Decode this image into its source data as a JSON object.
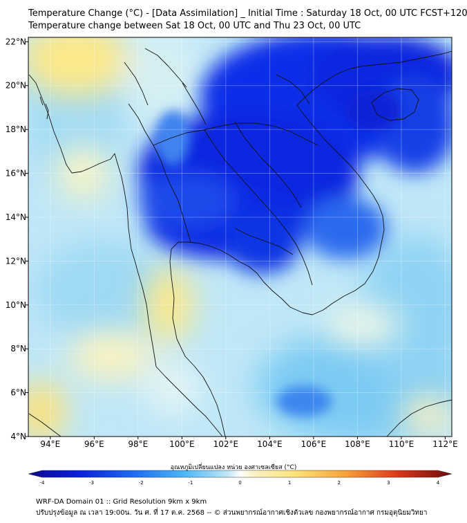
{
  "header": {
    "title_line1": "Temperature Change (°C) - [Data Assimilation] _ Initial Time : Saturday 18 Oct, 00 UTC FCST+120",
    "title_line2": "Temperature change between Sat 18 Oct, 00 UTC and Thu 23 Oct, 00 UTC"
  },
  "map": {
    "lon_ticks": [
      "94°E",
      "96°E",
      "98°E",
      "100°E",
      "102°E",
      "104°E",
      "106°E",
      "108°E",
      "110°E",
      "112°E"
    ],
    "lat_ticks": [
      "22°N",
      "20°N",
      "18°N",
      "16°N",
      "14°N",
      "12°N",
      "10°N",
      "8°N",
      "6°N",
      "4°N"
    ],
    "lon_values": [
      94,
      96,
      98,
      100,
      102,
      104,
      106,
      108,
      110,
      112
    ],
    "lat_values": [
      22,
      20,
      18,
      16,
      14,
      12,
      10,
      8,
      6,
      4
    ],
    "lon_range": [
      93,
      112.3
    ],
    "lat_range": [
      4,
      22.2
    ],
    "grid": true
  },
  "colorbar": {
    "label": "อุณหภูมิเปลี่ยนแปลง หน่วย องศาเซลเซียส (°C)",
    "ticks": [
      "-4",
      "-3",
      "-2",
      "-1",
      "0",
      "1",
      "2",
      "3",
      "4"
    ],
    "tick_values": [
      -4,
      -3,
      -2,
      -1,
      0,
      1,
      2,
      3,
      4
    ],
    "range": [
      -4,
      4
    ]
  },
  "colors": {
    "strong_cool": "#0a2fe0",
    "cool": "#4fb3f5",
    "light_cool": "#a9dcf6",
    "neutral": "#dff2fb",
    "warm": "#fde98a",
    "hot": "#c22a1a"
  },
  "footer": {
    "line1": "WRF-DA Domain 01 :: Grid Resolution 9km x 9km",
    "line2": "ปรับปรุงข้อมูล ณ เวลา 19:00น. วัน ศ. ที่ 17 ต.ค. 2568 -- © ส่วนพยากรณ์อากาศเชิงตัวเลข กองพยากรณ์อากาศ กรมอุตุนิยมวิทยา"
  }
}
